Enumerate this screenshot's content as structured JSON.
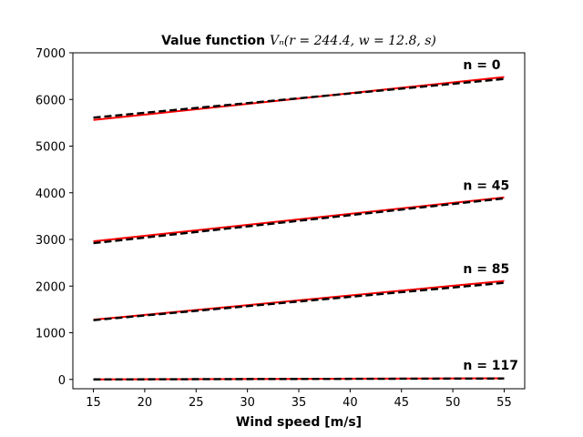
{
  "chart_data": {
    "type": "line",
    "title": {
      "bold": "Value function ",
      "math": "Vₙ(r = 244.4, w = 12.8, s)"
    },
    "xlabel": "Wind speed [m/s]",
    "ylabel": "",
    "xlim": [
      13,
      57
    ],
    "ylim": [
      -200,
      7000
    ],
    "xticks": [
      15,
      20,
      25,
      30,
      35,
      40,
      45,
      50,
      55
    ],
    "yticks": [
      0,
      1000,
      2000,
      3000,
      4000,
      5000,
      6000,
      7000
    ],
    "x": [
      15,
      55
    ],
    "colors": {
      "red": "#ff0000",
      "black": "#000000"
    },
    "series": [
      {
        "name": "n = 0 (red)",
        "style": "solid",
        "color": "#ff0000",
        "values": [
          5560,
          6480
        ]
      },
      {
        "name": "n = 0 (black)",
        "style": "dashed",
        "color": "#000000",
        "values": [
          5610,
          6440
        ]
      },
      {
        "name": "n = 45 (red)",
        "style": "solid",
        "color": "#ff0000",
        "values": [
          2960,
          3900
        ]
      },
      {
        "name": "n = 45 (black)",
        "style": "dashed",
        "color": "#000000",
        "values": [
          2920,
          3880
        ]
      },
      {
        "name": "n = 85 (red)",
        "style": "solid",
        "color": "#ff0000",
        "values": [
          1280,
          2110
        ]
      },
      {
        "name": "n = 85 (black)",
        "style": "dashed",
        "color": "#000000",
        "values": [
          1270,
          2070
        ]
      },
      {
        "name": "n = 117 (red)",
        "style": "solid",
        "color": "#ff0000",
        "values": [
          0,
          25
        ]
      },
      {
        "name": "n = 117 (black)",
        "style": "dashed",
        "color": "#000000",
        "values": [
          0,
          20
        ]
      }
    ],
    "annotations": [
      {
        "text": "n = 0",
        "x": 51,
        "y": 6650
      },
      {
        "text": "n = 45",
        "x": 51,
        "y": 4060
      },
      {
        "text": "n = 85",
        "x": 51,
        "y": 2280
      },
      {
        "text": "n = 117",
        "x": 51,
        "y": 210
      }
    ]
  }
}
